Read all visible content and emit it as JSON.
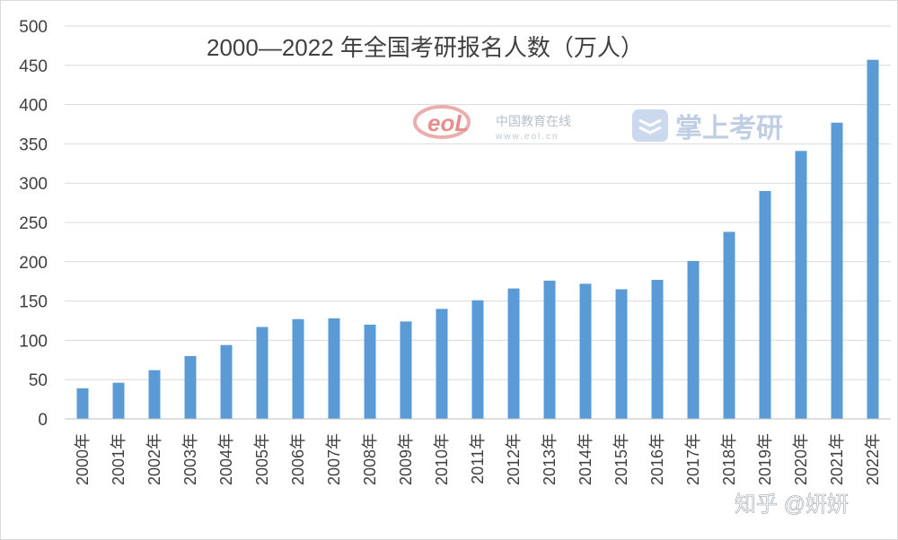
{
  "chart_data": {
    "type": "bar",
    "title": "2000—2022 年全国考研报名人数（万人）",
    "categories": [
      "2000年",
      "2001年",
      "2002年",
      "2003年",
      "2004年",
      "2005年",
      "2006年",
      "2007年",
      "2008年",
      "2009年",
      "2010年",
      "2011年",
      "2012年",
      "2013年",
      "2014年",
      "2015年",
      "2016年",
      "2017年",
      "2018年",
      "2019年",
      "2020年",
      "2021年",
      "2022年"
    ],
    "values": [
      39,
      46,
      62,
      80,
      94,
      117,
      127,
      128,
      120,
      124,
      140,
      151,
      166,
      176,
      172,
      165,
      177,
      201,
      238,
      290,
      341,
      377,
      457
    ],
    "ylim": [
      0,
      500
    ],
    "yticks": [
      "0",
      "50",
      "100",
      "150",
      "200",
      "250",
      "300",
      "350",
      "400",
      "450",
      "500"
    ],
    "grid": true,
    "legend": "none",
    "bar_color": "#5b9bd5",
    "grid_color": "#d9d9d9"
  },
  "watermarks": {
    "eol_logo": "eoL",
    "eol_name": "中国教育在线",
    "eol_url": "www.eol.cn",
    "app_name": "掌上考研",
    "credit": "知乎 @妍妍"
  }
}
